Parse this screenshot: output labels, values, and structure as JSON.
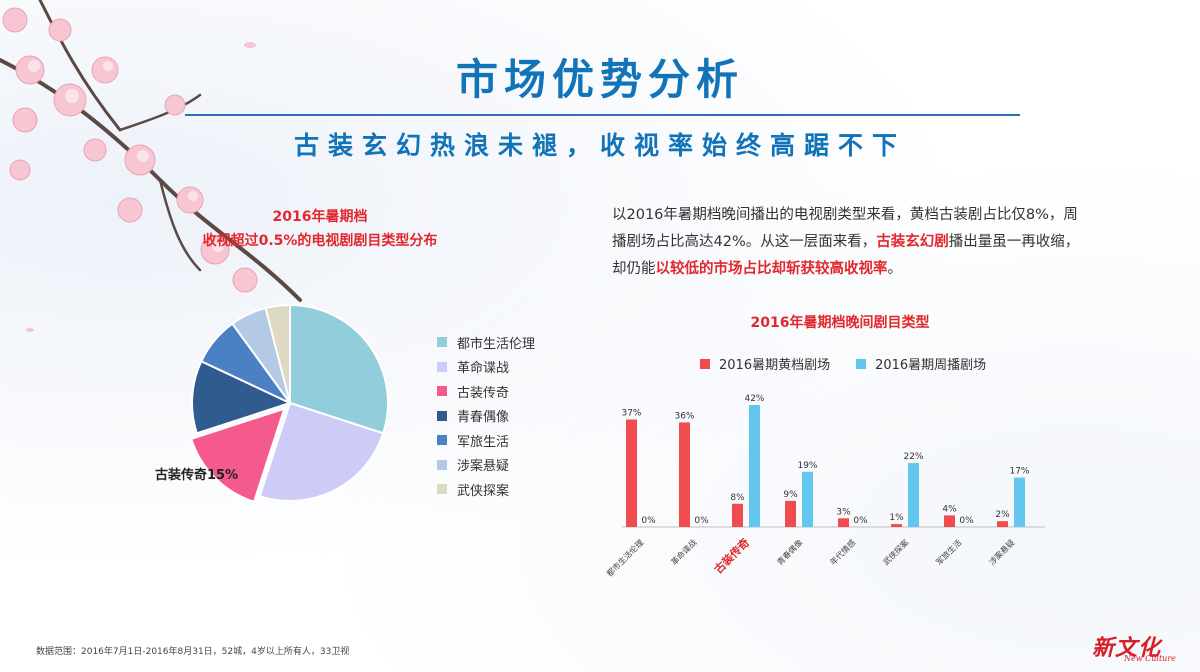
{
  "header": {
    "title": "市场优势分析",
    "subtitle": "古装玄幻热浪未褪，收视率始终高踞不下"
  },
  "pie_chart": {
    "title_line1": "2016年暑期档",
    "title_line2": "收视超过0.5%的电视剧剧目类型分布",
    "callout": "古装传奇15%"
  },
  "paragraph": {
    "p1": "以2016年暑期档晚间播出的电视剧类型来看，黄档古装剧占比仅8%，周播剧场占比高达42%。从这一层面来看，",
    "hl1": "古装玄幻剧",
    "p2": "播出量虽一再收缩，却仍能",
    "hl2": "以较低的市场占比却斩获较高收视率",
    "p3": "。"
  },
  "bar_chart": {
    "title": "2016年暑期档晚间剧目类型"
  },
  "chart_data": [
    {
      "type": "pie",
      "title": "2016年暑期档 收视超过0.5%的电视剧剧目类型分布",
      "categories": [
        "都市生活伦理",
        "革命谍战",
        "古装传奇",
        "青春偶像",
        "军旅生活",
        "涉案悬疑",
        "武侠探案"
      ],
      "values": [
        30,
        25,
        15,
        12,
        8,
        6,
        4
      ],
      "colors": [
        "#92cddc",
        "#ccccf7",
        "#f45b8c",
        "#305b8e",
        "#4b80c5",
        "#b4c9e4",
        "#ddd9c3"
      ],
      "exploded": "古装传奇",
      "legend": "right",
      "annotation": "古装传奇15%"
    },
    {
      "type": "bar",
      "title": "2016年暑期档晚间剧目类型",
      "categories": [
        "都市生活伦理",
        "革命谍战",
        "古装传奇",
        "青春偶像",
        "年代情感",
        "武侠探案",
        "军旅生活",
        "涉案悬疑"
      ],
      "highlight_category": "古装传奇",
      "series": [
        {
          "name": "2016暑期黄档剧场",
          "color": "#f04b4e",
          "values": [
            37,
            36,
            8,
            9,
            3,
            1,
            4,
            2
          ]
        },
        {
          "name": "2016暑期周播剧场",
          "color": "#62c6ee",
          "values": [
            0,
            0,
            42,
            19,
            0,
            22,
            0,
            17
          ]
        }
      ],
      "value_suffix": "%",
      "ylim": [
        0,
        45
      ],
      "grid": false,
      "legend": "top"
    }
  ],
  "footer": {
    "note": "数据范围：2016年7月1日-2016年8月31日，52城，4岁以上所有人，33卫视",
    "logo_cn": "新文化",
    "logo_en": "New Culture"
  }
}
